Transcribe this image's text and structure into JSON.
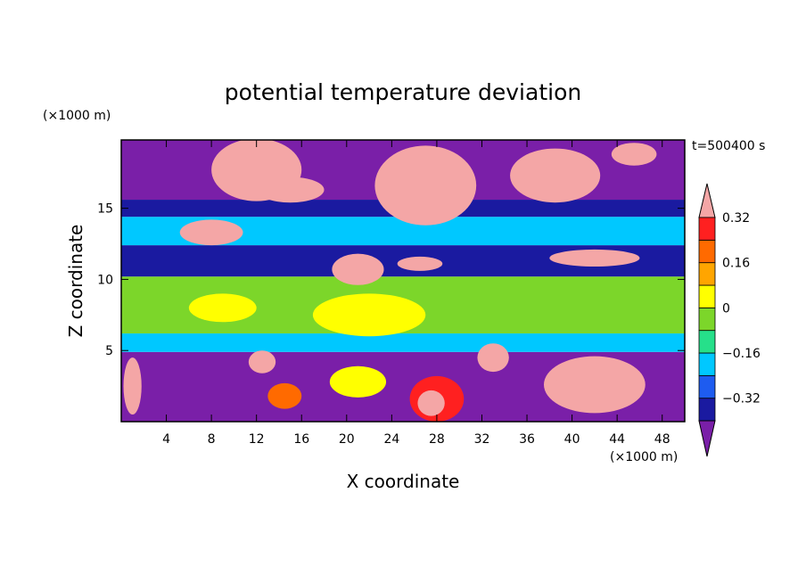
{
  "chart_data": {
    "type": "heatmap",
    "title": "potential temperature deviation",
    "xlabel": "X coordinate",
    "ylabel": "Z coordinate",
    "x_unit": "(×1000 m)",
    "y_unit": "(×1000 m)",
    "time_label": "t=500400 s",
    "xlim": [
      0,
      50
    ],
    "ylim": [
      0,
      19.8
    ],
    "x_ticks": [
      4,
      8,
      12,
      16,
      20,
      24,
      28,
      32,
      36,
      40,
      44,
      48
    ],
    "y_ticks": [
      5,
      10,
      15
    ],
    "colorbar": {
      "levels": [
        -0.4,
        -0.32,
        -0.24,
        -0.16,
        -0.08,
        0,
        0.08,
        0.16,
        0.24,
        0.32,
        0.4
      ],
      "labeled_ticks": [
        -0.32,
        -0.16,
        0,
        0.16,
        0.32
      ],
      "tick_labels": [
        "−0.32",
        "−0.16",
        "0",
        "0.16",
        "0.32"
      ],
      "colors": [
        "#7a1fa8",
        "#1a1aa0",
        "#1e5cf0",
        "#00c8ff",
        "#26e08a",
        "#7cd62a",
        "#ffff00",
        "#ffa500",
        "#ff6a00",
        "#ff2020",
        "#f4a6a6"
      ],
      "extend": "both"
    },
    "bands": [
      {
        "z_from": 0,
        "z_to": 4.9,
        "value": -0.4
      },
      {
        "z_from": 4.9,
        "z_to": 6.2,
        "value": -0.16
      },
      {
        "z_from": 6.2,
        "z_to": 10.2,
        "value": 0
      },
      {
        "z_from": 10.2,
        "z_to": 12.4,
        "value": -0.32
      },
      {
        "z_from": 12.4,
        "z_to": 14.4,
        "value": -0.16
      },
      {
        "z_from": 14.4,
        "z_to": 15.6,
        "value": -0.32
      },
      {
        "z_from": 15.6,
        "z_to": 19.8,
        "value": -0.4
      }
    ],
    "features": [
      {
        "x": 28,
        "z": 1.6,
        "dx": 2.4,
        "dz": 1.6,
        "value": 0.32
      },
      {
        "x": 27.5,
        "z": 1.3,
        "dx": 1.2,
        "dz": 0.9,
        "value": 0.4
      },
      {
        "x": 42,
        "z": 2.6,
        "dx": 4.5,
        "dz": 2.0,
        "value": 0.4
      },
      {
        "x": 40.5,
        "z": 2.4,
        "dx": 2.0,
        "dz": 1.4,
        "value": 0.4
      },
      {
        "x": 33,
        "z": 4.5,
        "dx": 1.4,
        "dz": 1.0,
        "value": 0.4
      },
      {
        "x": 12.5,
        "z": 4.2,
        "dx": 1.2,
        "dz": 0.8,
        "value": 0.4
      },
      {
        "x": 1,
        "z": 2.5,
        "dx": 0.8,
        "dz": 2.0,
        "value": 0.4
      },
      {
        "x": 21,
        "z": 10.7,
        "dx": 2.3,
        "dz": 1.1,
        "value": 0.4
      },
      {
        "x": 26.5,
        "z": 11.1,
        "dx": 2.0,
        "dz": 0.5,
        "value": 0.4
      },
      {
        "x": 42,
        "z": 11.5,
        "dx": 4.0,
        "dz": 0.6,
        "value": 0.4
      },
      {
        "x": 8,
        "z": 13.3,
        "dx": 2.8,
        "dz": 0.9,
        "value": 0.4
      },
      {
        "x": 12,
        "z": 17.7,
        "dx": 4.0,
        "dz": 2.2,
        "value": 0.4
      },
      {
        "x": 27,
        "z": 16.6,
        "dx": 4.5,
        "dz": 2.8,
        "value": 0.4
      },
      {
        "x": 38.5,
        "z": 17.3,
        "dx": 4.0,
        "dz": 1.9,
        "value": 0.4
      },
      {
        "x": 15,
        "z": 16.3,
        "dx": 3.0,
        "dz": 0.9,
        "value": 0.4
      },
      {
        "x": 45.5,
        "z": 18.8,
        "dx": 2.0,
        "dz": 0.8,
        "value": 0.4
      },
      {
        "x": 9,
        "z": 8.0,
        "dx": 3.0,
        "dz": 1.0,
        "value": 0.08
      },
      {
        "x": 22,
        "z": 7.5,
        "dx": 5.0,
        "dz": 1.5,
        "value": 0.08
      },
      {
        "x": 14.5,
        "z": 1.8,
        "dx": 1.5,
        "dz": 0.9,
        "value": 0.24
      },
      {
        "x": 21,
        "z": 2.8,
        "dx": 2.5,
        "dz": 1.1,
        "value": 0.08
      }
    ]
  }
}
